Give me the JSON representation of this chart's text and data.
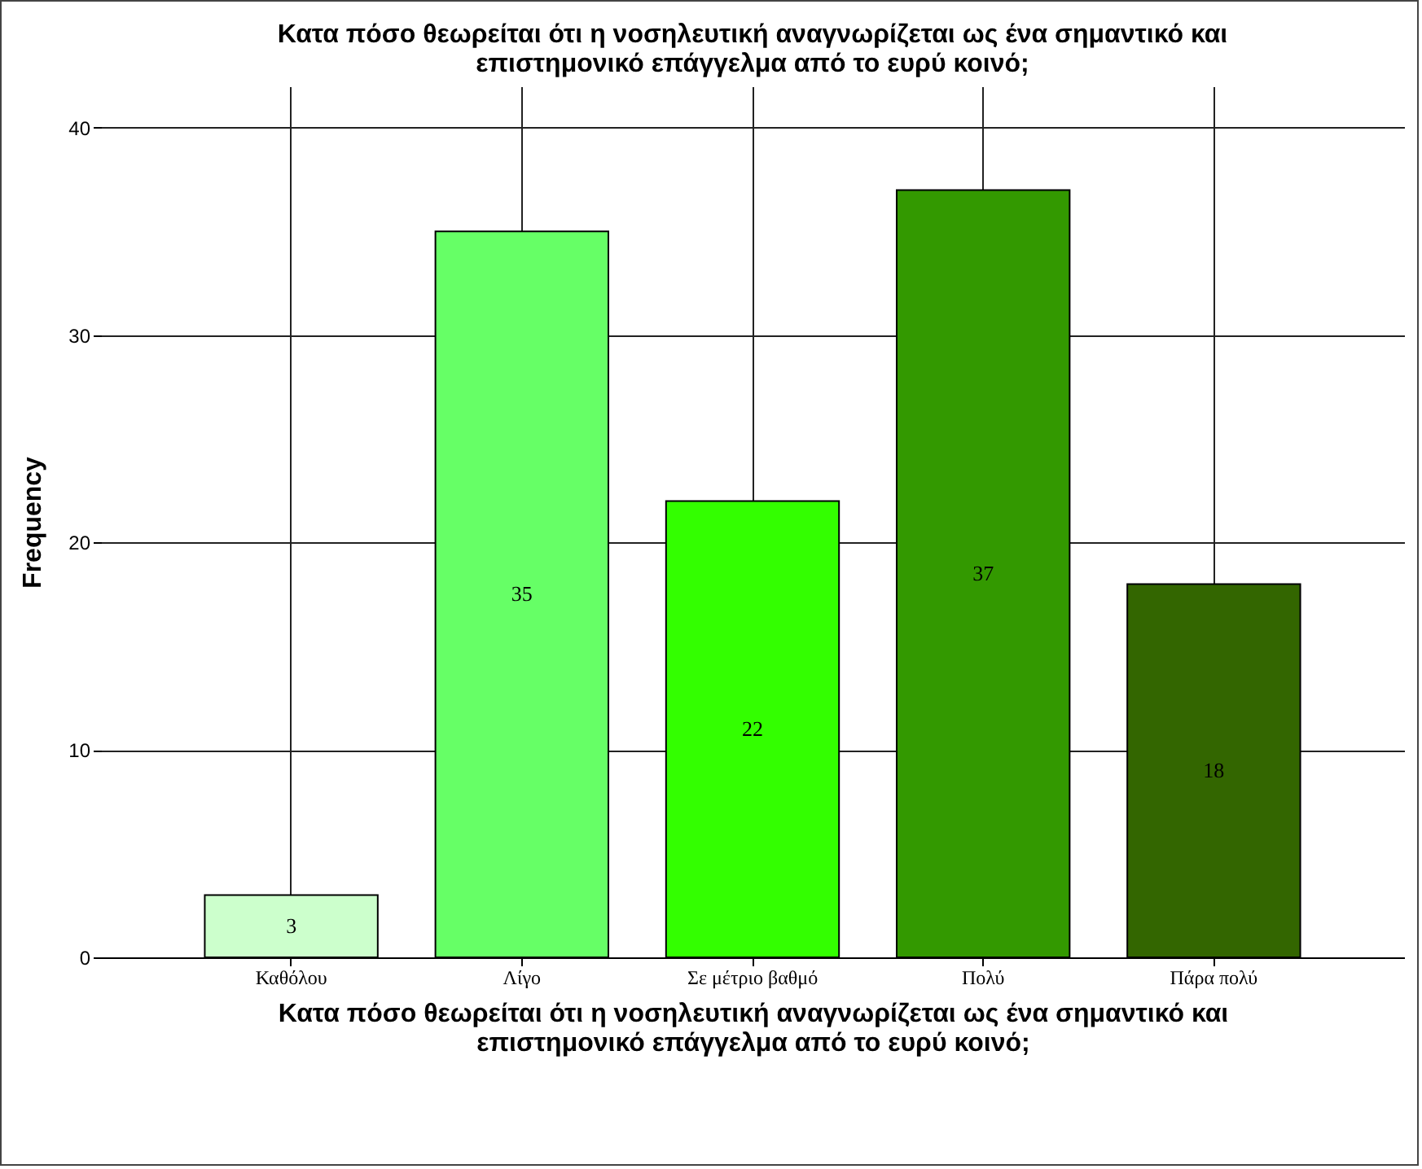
{
  "chart_data": {
    "type": "bar",
    "title": "Κατα πόσο θεωρείται ότι η νοσηλευτική αναγνωρίζεται ως ένα σημαντικό και\nεπιστημονικό επάγγελμα από το ευρύ κοινό;",
    "xlabel": "Κατα πόσο θεωρείται ότι η νοσηλευτική αναγνωρίζεται ως ένα σημαντικό και\nεπιστημονικό επάγγελμα από το ευρύ κοινό;",
    "ylabel": "Frequency",
    "categories": [
      "Καθόλου",
      "Λίγο",
      "Σε μέτριο βαθμό",
      "Πολύ",
      "Πάρα πολύ"
    ],
    "values": [
      3,
      35,
      22,
      37,
      18
    ],
    "colors": [
      "#ccffcc",
      "#66ff66",
      "#33ff00",
      "#339900",
      "#336600"
    ],
    "ylim": [
      0,
      42
    ],
    "yticks": [
      0,
      10,
      20,
      30,
      40
    ],
    "grid": true,
    "data_labels": true
  }
}
